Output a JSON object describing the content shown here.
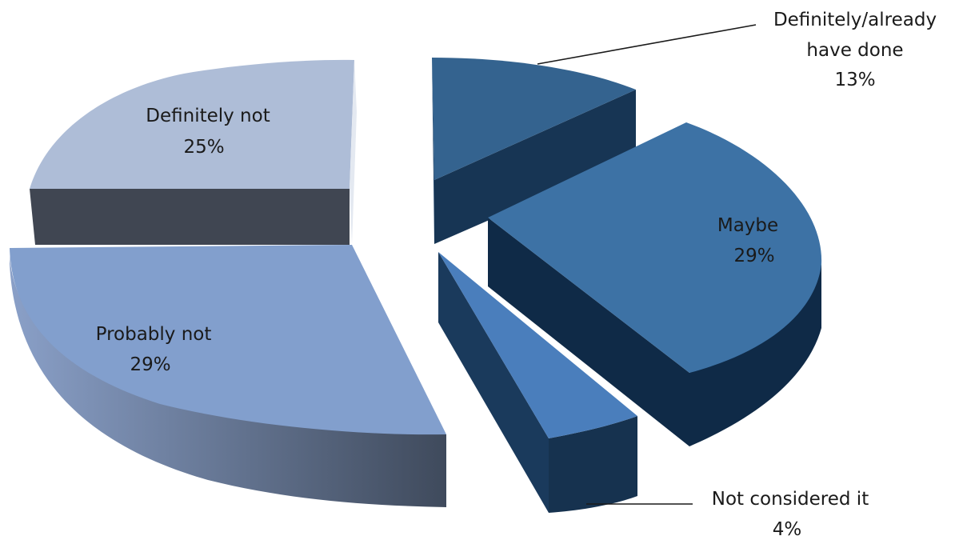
{
  "chart_data": {
    "type": "pie",
    "style": "3d-exploded",
    "title": "",
    "slices": [
      {
        "label": "Definitely/already have done",
        "label_lines": [
          "Definitely/already",
          "have done"
        ],
        "value": 13,
        "percent_label": "13%",
        "color": "#34638f"
      },
      {
        "label": "Maybe",
        "label_lines": [
          "Maybe"
        ],
        "value": 29,
        "percent_label": "29%",
        "color": "#3d72a5"
      },
      {
        "label": "Not considered it",
        "label_lines": [
          "Not considered it"
        ],
        "value": 4,
        "percent_label": "4%",
        "color": "#4a7ebc"
      },
      {
        "label": "Probably not",
        "label_lines": [
          "Probably not"
        ],
        "value": 29,
        "percent_label": "29%",
        "color": "#829fcd"
      },
      {
        "label": "Definitely not",
        "label_lines": [
          "Definitely not"
        ],
        "value": 25,
        "percent_label": "25%",
        "color": "#aebdd7"
      }
    ],
    "legend": "none"
  }
}
